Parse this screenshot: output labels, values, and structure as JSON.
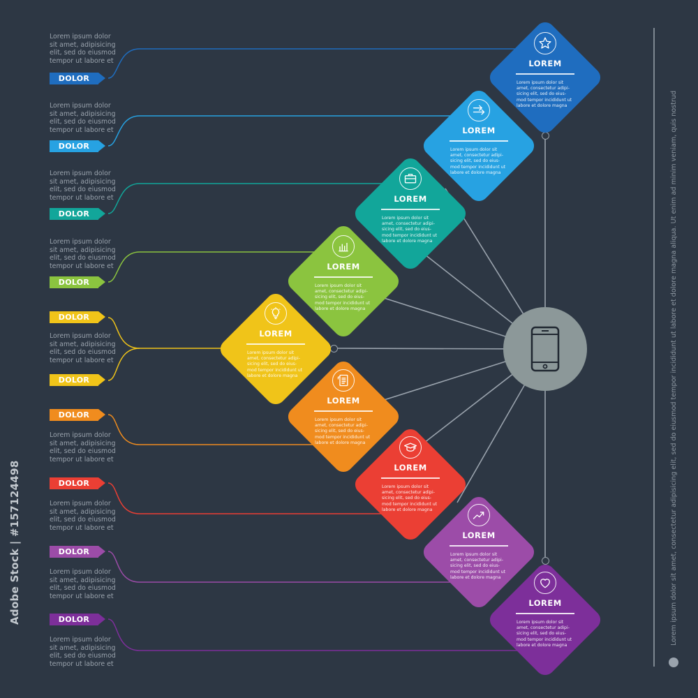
{
  "colors": {
    "background": "#2d3744",
    "hub": "#8c9899",
    "connector": "#9aa3ad",
    "steps": [
      "#1f6dbf",
      "#27a2e2",
      "#12a69a",
      "#8bc43f",
      "#f0c419",
      "#f08c1e",
      "#eb3f34",
      "#9c4ca8",
      "#7d2f9a"
    ]
  },
  "side_text": "Lorem ipsum dolor sit amet, adipisicing elit, sed do eiusmod tempor ut labore et",
  "tags": [
    "DOLOR",
    "DOLOR",
    "DOLOR",
    "DOLOR",
    "DOLOR",
    "DOLOR",
    "DOLOR",
    "DOLOR",
    "DOLOR",
    "DOLOR"
  ],
  "cards": [
    {
      "title": "LOREM",
      "icon": "star-icon",
      "text": "Lorem ipsum dolor sit amet, consectetur adipi-sicing elit, sed do eius-mod tempor incididunt ut labore et dolore magna"
    },
    {
      "title": "LOREM",
      "icon": "arrows-icon",
      "text": "Lorem ipsum dolor sit amet, consectetur adipi-sicing elit, sed do eius-mod tempor incididunt ut labore et dolore magna"
    },
    {
      "title": "LOREM",
      "icon": "briefcase-icon",
      "text": "Lorem ipsum dolor sit amet, consectetur adipi-sicing elit, sed do eius-mod tempor incididunt ut labore et dolore magna"
    },
    {
      "title": "LOREM",
      "icon": "bar-chart-icon",
      "text": "Lorem ipsum dolor sit amet, consectetur adipi-sicing elit, sed do eius-mod tempor incididunt ut labore et dolore magna"
    },
    {
      "title": "LOREM",
      "icon": "lightbulb-icon",
      "text": "Lorem ipsum dolor sit amet, consectetur adipi-sicing elit, sed do eius-mod tempor incididunt ut labore et dolore magna"
    },
    {
      "title": "LOREM",
      "icon": "document-icon",
      "text": "Lorem ipsum dolor sit amet, consectetur adipi-sicing elit, sed do eius-mod tempor incididunt ut labore et dolore magna"
    },
    {
      "title": "LOREM",
      "icon": "graduation-cap-icon",
      "text": "Lorem ipsum dolor sit amet, consectetur adipi-sicing elit, sed do eius-mod tempor incididunt ut labore et dolore magna"
    },
    {
      "title": "LOREM",
      "icon": "trend-arrow-icon",
      "text": "Lorem ipsum dolor sit amet, consectetur adipi-sicing elit, sed do eius-mod tempor incididunt ut labore et dolore magna"
    },
    {
      "title": "LOREM",
      "icon": "heart-icon",
      "text": "Lorem ipsum dolor sit amet, consectetur adipi-sicing elit, sed do eius-mod tempor incididunt ut labore et dolore magna"
    }
  ],
  "hub_icon": "smartphone-icon",
  "right_text": "Lorem ipsum dolor sit amet, consectetur adipisicing elit, sed do eiusmod tempor incididunt ut labore et dolore magna aliqua. Ut enim ad minim veniam, quis nostrud",
  "stock_id": "Adobe Stock | #157124498"
}
